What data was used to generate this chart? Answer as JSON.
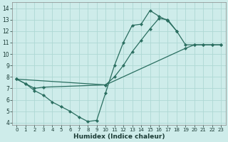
{
  "xlabel": "Humidex (Indice chaleur)",
  "background_color": "#ceecea",
  "grid_color": "#aed8d4",
  "line_color": "#2a6e60",
  "xlim": [
    -0.5,
    23.5
  ],
  "ylim": [
    3.8,
    14.5
  ],
  "xticks": [
    0,
    1,
    2,
    3,
    4,
    5,
    6,
    7,
    8,
    9,
    10,
    11,
    12,
    13,
    14,
    15,
    16,
    17,
    18,
    19,
    20,
    21,
    22,
    23
  ],
  "yticks": [
    4,
    5,
    6,
    7,
    8,
    9,
    10,
    11,
    12,
    13,
    14
  ],
  "line1_x": [
    0,
    1,
    2,
    3,
    4,
    5,
    6,
    7,
    8,
    9,
    10,
    11,
    12,
    13,
    14,
    15,
    16,
    17,
    18
  ],
  "line1_y": [
    7.8,
    7.4,
    6.8,
    6.4,
    5.8,
    5.4,
    5.0,
    4.5,
    4.1,
    4.2,
    6.6,
    9.0,
    11.0,
    12.5,
    12.6,
    13.8,
    13.3,
    12.9,
    12.0
  ],
  "line2_x": [
    0,
    1,
    2,
    3,
    10,
    11,
    12,
    13,
    14,
    15,
    16,
    17,
    18,
    19,
    20,
    21,
    22,
    23
  ],
  "line2_y": [
    7.8,
    7.4,
    7.0,
    7.1,
    7.3,
    8.0,
    9.0,
    10.2,
    11.2,
    12.2,
    13.1,
    13.0,
    12.0,
    10.8,
    10.8,
    10.8,
    10.8,
    10.8
  ],
  "line3_x": [
    0,
    10,
    19,
    20,
    21,
    22,
    23
  ],
  "line3_y": [
    7.8,
    7.3,
    10.5,
    10.8,
    10.8,
    10.8,
    10.8
  ],
  "xlabel_fontsize": 6.5,
  "tick_fontsize_x": 5.0,
  "tick_fontsize_y": 5.5
}
